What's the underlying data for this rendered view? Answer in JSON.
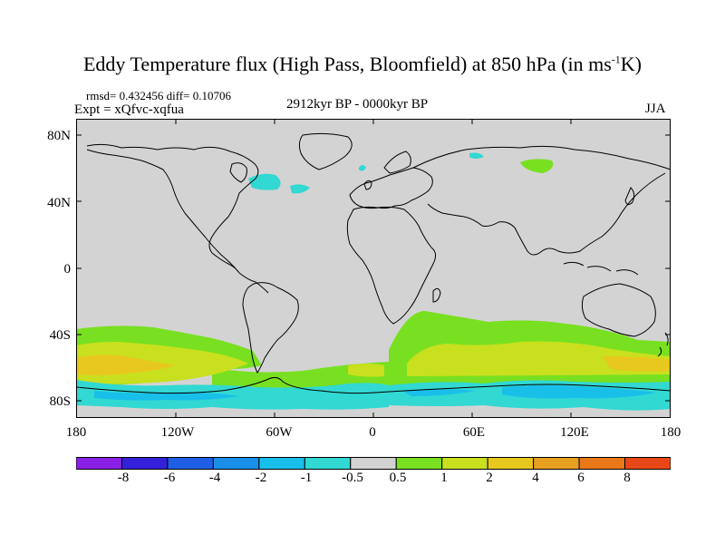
{
  "title": {
    "main": "Eddy Temperature flux (High Pass, Bloomfield) at 850 hPa (in ms",
    "sup": "-1",
    "end": "K)"
  },
  "stats": {
    "text": "rmsd= 0.432456 diff= 0.10706"
  },
  "experiment": {
    "text": "Expt = xQfvc-xqfua"
  },
  "period": {
    "text": "2912kyr BP - 0000kyr BP"
  },
  "season": {
    "text": "JJA"
  },
  "axes": {
    "lat_ticks": [
      "80N",
      "40N",
      "0",
      "40S",
      "80S"
    ],
    "lon_ticks": [
      "180",
      "120W",
      "60W",
      "0",
      "60E",
      "120E",
      "180"
    ]
  },
  "colorbar": {
    "labels": [
      "-8",
      "-6",
      "-4",
      "-2",
      "-1",
      "-0.5",
      "0.5",
      "1",
      "2",
      "4",
      "6",
      "8"
    ],
    "colors": [
      "#8a1fe6",
      "#3420d8",
      "#1e5fe6",
      "#1a8fe8",
      "#18bfe8",
      "#32d8d2",
      "#d2d2d2",
      "#78e020",
      "#c8e01e",
      "#e8c81e",
      "#e8a020",
      "#e87818",
      "#e84818"
    ]
  },
  "colors": {
    "background": "#d3d3d3",
    "coast": "#000000"
  }
}
